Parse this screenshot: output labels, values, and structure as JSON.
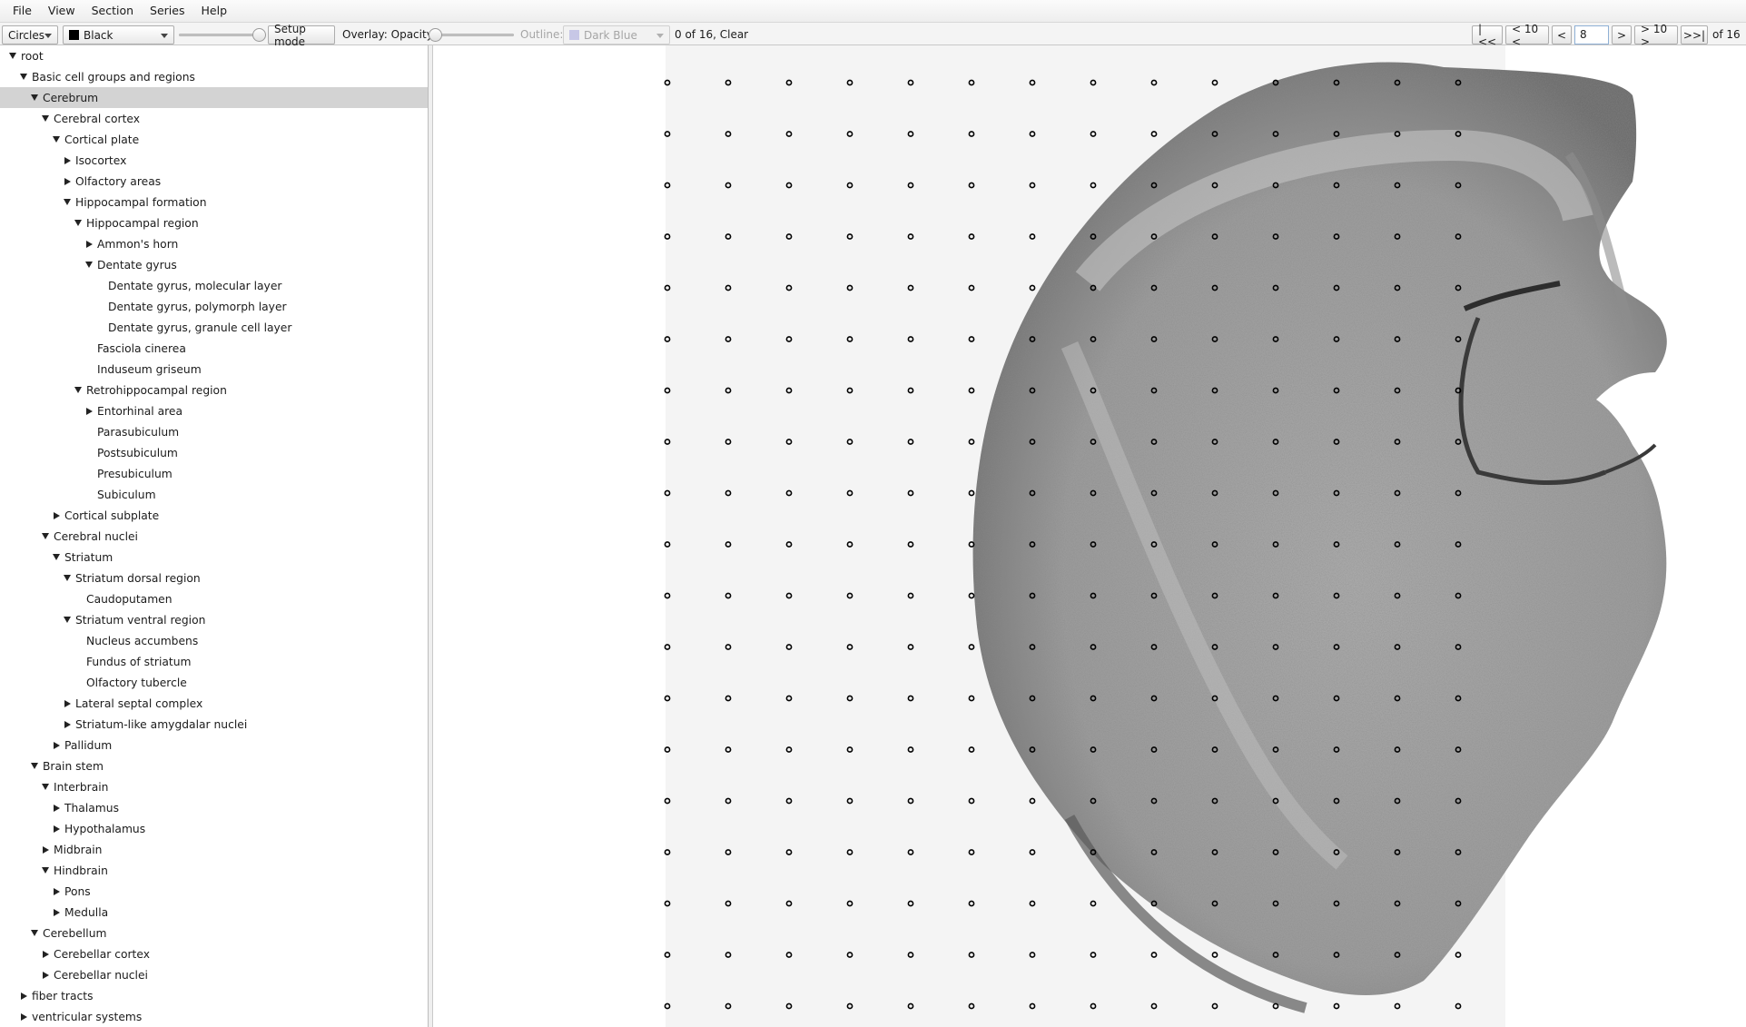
{
  "menu": [
    "File",
    "View",
    "Section",
    "Series",
    "Help"
  ],
  "toolbar": {
    "marker_shape": "Circles",
    "marker_color": "Black",
    "setup_mode": "Setup mode",
    "overlay_label": "Overlay: Opacity:",
    "outline_label": "Outline:",
    "outline_color": "Dark Blue",
    "status": "0 of 16, Clear",
    "nav_first": "|<<",
    "nav_back10": "< 10 <",
    "nav_prev": "<",
    "page_value": "8",
    "nav_next": ">",
    "nav_fwd10": "> 10 >",
    "nav_last": ">>|",
    "page_total": "of 16"
  },
  "tree": [
    {
      "label": "root",
      "depth": 0,
      "state": "expanded"
    },
    {
      "label": "Basic cell groups and regions",
      "depth": 1,
      "state": "expanded"
    },
    {
      "label": "Cerebrum",
      "depth": 2,
      "state": "expanded",
      "selected": true
    },
    {
      "label": "Cerebral cortex",
      "depth": 3,
      "state": "expanded"
    },
    {
      "label": "Cortical plate",
      "depth": 4,
      "state": "expanded"
    },
    {
      "label": "Isocortex",
      "depth": 5,
      "state": "collapsed"
    },
    {
      "label": "Olfactory areas",
      "depth": 5,
      "state": "collapsed"
    },
    {
      "label": "Hippocampal formation",
      "depth": 5,
      "state": "expanded"
    },
    {
      "label": "Hippocampal region",
      "depth": 6,
      "state": "expanded"
    },
    {
      "label": "Ammon's horn",
      "depth": 7,
      "state": "collapsed"
    },
    {
      "label": "Dentate gyrus",
      "depth": 7,
      "state": "expanded"
    },
    {
      "label": "Dentate gyrus, molecular layer",
      "depth": 8,
      "state": "leaf"
    },
    {
      "label": "Dentate gyrus, polymorph layer",
      "depth": 8,
      "state": "leaf"
    },
    {
      "label": "Dentate gyrus, granule cell layer",
      "depth": 8,
      "state": "leaf"
    },
    {
      "label": "Fasciola cinerea",
      "depth": 7,
      "state": "leaf"
    },
    {
      "label": "Induseum griseum",
      "depth": 7,
      "state": "leaf"
    },
    {
      "label": "Retrohippocampal region",
      "depth": 6,
      "state": "expanded"
    },
    {
      "label": "Entorhinal area",
      "depth": 7,
      "state": "collapsed"
    },
    {
      "label": "Parasubiculum",
      "depth": 7,
      "state": "leaf"
    },
    {
      "label": "Postsubiculum",
      "depth": 7,
      "state": "leaf"
    },
    {
      "label": "Presubiculum",
      "depth": 7,
      "state": "leaf"
    },
    {
      "label": "Subiculum",
      "depth": 7,
      "state": "leaf"
    },
    {
      "label": "Cortical subplate",
      "depth": 4,
      "state": "collapsed"
    },
    {
      "label": "Cerebral nuclei",
      "depth": 3,
      "state": "expanded"
    },
    {
      "label": "Striatum",
      "depth": 4,
      "state": "expanded"
    },
    {
      "label": "Striatum dorsal region",
      "depth": 5,
      "state": "expanded"
    },
    {
      "label": "Caudoputamen",
      "depth": 6,
      "state": "leaf"
    },
    {
      "label": "Striatum ventral region",
      "depth": 5,
      "state": "expanded"
    },
    {
      "label": "Nucleus accumbens",
      "depth": 6,
      "state": "leaf"
    },
    {
      "label": "Fundus of striatum",
      "depth": 6,
      "state": "leaf"
    },
    {
      "label": "Olfactory tubercle",
      "depth": 6,
      "state": "leaf"
    },
    {
      "label": "Lateral septal complex",
      "depth": 5,
      "state": "collapsed"
    },
    {
      "label": "Striatum-like amygdalar nuclei",
      "depth": 5,
      "state": "collapsed"
    },
    {
      "label": "Pallidum",
      "depth": 4,
      "state": "collapsed"
    },
    {
      "label": "Brain stem",
      "depth": 2,
      "state": "expanded"
    },
    {
      "label": "Interbrain",
      "depth": 3,
      "state": "expanded"
    },
    {
      "label": "Thalamus",
      "depth": 4,
      "state": "collapsed"
    },
    {
      "label": "Hypothalamus",
      "depth": 4,
      "state": "collapsed"
    },
    {
      "label": "Midbrain",
      "depth": 3,
      "state": "collapsed"
    },
    {
      "label": "Hindbrain",
      "depth": 3,
      "state": "expanded"
    },
    {
      "label": "Pons",
      "depth": 4,
      "state": "collapsed"
    },
    {
      "label": "Medulla",
      "depth": 4,
      "state": "collapsed"
    },
    {
      "label": "Cerebellum",
      "depth": 2,
      "state": "expanded"
    },
    {
      "label": "Cerebellar cortex",
      "depth": 3,
      "state": "collapsed"
    },
    {
      "label": "Cerebellar nuclei",
      "depth": 3,
      "state": "collapsed"
    },
    {
      "label": "fiber tracts",
      "depth": 1,
      "state": "collapsed"
    },
    {
      "label": "ventricular systems",
      "depth": 1,
      "state": "collapsed"
    }
  ],
  "colors": {
    "selection": "#d3d3d3",
    "tissue": "#8a8a8a",
    "marker": "#000000",
    "outline_disabled": "#c7c7e6"
  }
}
